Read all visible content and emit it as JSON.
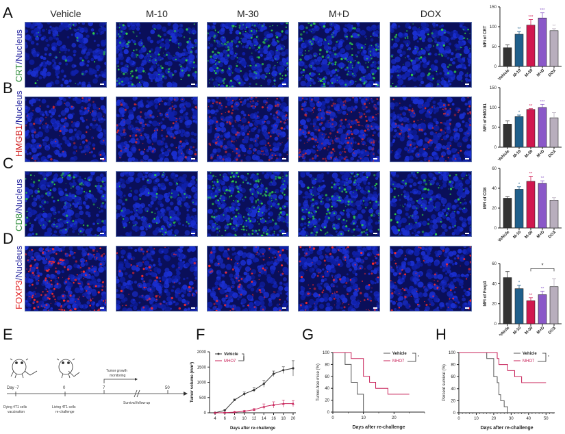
{
  "panels": {
    "A": {
      "letter": "A",
      "stain": "CRT",
      "nucleus": "/Nucleus",
      "stain_color": "#2e8b3a"
    },
    "B": {
      "letter": "B",
      "stain": "HMGB1",
      "nucleus": "/Nucleus",
      "stain_color": "#d02020"
    },
    "C": {
      "letter": "C",
      "stain": "CD8",
      "nucleus": "/Nucleus",
      "stain_color": "#2e8b3a"
    },
    "D": {
      "letter": "D",
      "stain": "FOXP3",
      "nucleus": "/Nucleus",
      "stain_color": "#e02020"
    },
    "E": {
      "letter": "E"
    },
    "F": {
      "letter": "F"
    },
    "G": {
      "letter": "G"
    },
    "H": {
      "letter": "H"
    }
  },
  "columns": [
    "Vehicle",
    "M-10",
    "M-30",
    "M+D",
    "DOX"
  ],
  "colors": {
    "vehicle": "#333333",
    "m10": "#1f5f8b",
    "m30": "#d0174f",
    "md": "#8a58c8",
    "dox": "#b8aebd",
    "nucleus_blue": "#1a2fd0",
    "mho7": "#c8235a"
  },
  "timeline": {
    "day_minus7": "Day -7",
    "day0": "0",
    "day7": "7",
    "day50": "50",
    "vaccination_line1": "Dying 4T1 cells",
    "vaccination_line2": "vaccination",
    "rechallenge_line1": "Living 4T1 cells",
    "rechallenge_line2": "re-challenge",
    "monitoring_line1": "Tumor growth",
    "monitoring_line2": "monitoring",
    "survival": "Survival follow-up"
  },
  "chart_data": [
    {
      "id": "A",
      "type": "bar",
      "categories": [
        "Vehicle",
        "M-10",
        "M-30",
        "M+D",
        "DOX"
      ],
      "values": [
        47,
        81,
        104,
        122,
        90
      ],
      "errors": [
        7,
        7,
        14,
        13,
        5
      ],
      "significance": [
        "",
        "**",
        "***",
        "***",
        "**"
      ],
      "ylabel": "MFI of CRT",
      "ylim": [
        0,
        150
      ],
      "yticks": [
        0,
        50,
        100,
        150
      ]
    },
    {
      "id": "B",
      "type": "bar",
      "categories": [
        "Vehicle",
        "M-10",
        "M-30",
        "M+D",
        "DOX"
      ],
      "values": [
        58,
        77,
        95,
        100,
        74
      ],
      "errors": [
        8,
        4,
        2,
        8,
        13
      ],
      "significance": [
        "",
        "*",
        "**",
        "***",
        ""
      ],
      "ylabel": "MFI of HMGB1",
      "ylim": [
        0,
        150
      ],
      "yticks": [
        0,
        50,
        100,
        150
      ]
    },
    {
      "id": "C",
      "type": "bar",
      "categories": [
        "Vehicle",
        "M-10",
        "M-30",
        "M+D",
        "DOX"
      ],
      "values": [
        30,
        39,
        47,
        45,
        28
      ],
      "errors": [
        1.5,
        2.5,
        5,
        2.5,
        2.5
      ],
      "significance": [
        "",
        "*",
        "**",
        "**",
        ""
      ],
      "ylabel": "MFI of CD8",
      "ylim": [
        0,
        60
      ],
      "yticks": [
        0,
        20,
        40,
        60
      ]
    },
    {
      "id": "D",
      "type": "bar",
      "categories": [
        "Vehicle",
        "M-10",
        "M-30",
        "M+D",
        "DOX"
      ],
      "values": [
        46,
        35,
        23,
        29,
        37
      ],
      "errors": [
        6,
        3.5,
        3,
        3.5,
        8
      ],
      "significance": [
        "",
        "*",
        "**",
        "**",
        ""
      ],
      "bracket": {
        "from": "M-30",
        "to": "DOX",
        "label": "*"
      },
      "ylabel": "MFI of Foxp3",
      "ylim": [
        0,
        60
      ],
      "yticks": [
        0,
        20,
        40,
        60
      ]
    },
    {
      "id": "F",
      "type": "line",
      "x": [
        4,
        6,
        8,
        10,
        12,
        14,
        16,
        18,
        20
      ],
      "series": [
        {
          "name": "Vehicle",
          "values": [
            0,
            80,
            420,
            620,
            750,
            950,
            1280,
            1400,
            1460
          ],
          "errors": [
            10,
            20,
            30,
            60,
            70,
            110,
            90,
            110,
            250
          ]
        },
        {
          "name": "MHO7",
          "values": [
            0,
            5,
            20,
            50,
            100,
            200,
            260,
            300,
            300
          ],
          "errors": [
            5,
            10,
            20,
            30,
            40,
            90,
            100,
            120,
            100
          ]
        }
      ],
      "significance": "***",
      "xlabel": "Days after re-challenge",
      "ylabel": "Tumor volume (mm³)",
      "ylim": [
        0,
        2000
      ],
      "yticks": [
        0,
        500,
        1000,
        1500,
        2000
      ],
      "xticks": [
        4,
        6,
        8,
        10,
        12,
        14,
        16,
        18,
        20
      ]
    },
    {
      "id": "G",
      "type": "line",
      "step": true,
      "series": [
        {
          "name": "Vehicle",
          "points": [
            [
              0,
              100
            ],
            [
              4,
              100
            ],
            [
              4,
              80
            ],
            [
              6,
              80
            ],
            [
              6,
              50
            ],
            [
              8,
              50
            ],
            [
              8,
              30
            ],
            [
              10,
              30
            ],
            [
              10,
              0
            ]
          ]
        },
        {
          "name": "MHO7",
          "points": [
            [
              0,
              100
            ],
            [
              6,
              100
            ],
            [
              6,
              90
            ],
            [
              10,
              90
            ],
            [
              10,
              60
            ],
            [
              12,
              60
            ],
            [
              12,
              50
            ],
            [
              14,
              50
            ],
            [
              14,
              40
            ],
            [
              18,
              40
            ],
            [
              18,
              30
            ],
            [
              25,
              30
            ]
          ]
        }
      ],
      "significance": "*",
      "xlabel": "Days after re-challenge",
      "ylabel": "Tumor-free mice (%)",
      "xlim": [
        0,
        30
      ],
      "ylim": [
        0,
        100
      ],
      "xticks": [
        0,
        10,
        20
      ],
      "yticks": [
        0,
        20,
        40,
        60,
        80,
        100
      ]
    },
    {
      "id": "H",
      "type": "line",
      "step": true,
      "series": [
        {
          "name": "Vehicle",
          "points": [
            [
              0,
              100
            ],
            [
              16,
              100
            ],
            [
              16,
              90
            ],
            [
              20,
              90
            ],
            [
              20,
              60
            ],
            [
              22,
              60
            ],
            [
              22,
              50
            ],
            [
              23,
              50
            ],
            [
              23,
              30
            ],
            [
              24,
              30
            ],
            [
              24,
              20
            ],
            [
              26,
              20
            ],
            [
              26,
              10
            ],
            [
              28,
              10
            ],
            [
              28,
              0
            ]
          ]
        },
        {
          "name": "MHO7",
          "points": [
            [
              0,
              100
            ],
            [
              22,
              100
            ],
            [
              22,
              90
            ],
            [
              23,
              90
            ],
            [
              23,
              80
            ],
            [
              28,
              80
            ],
            [
              28,
              70
            ],
            [
              32,
              70
            ],
            [
              32,
              60
            ],
            [
              36,
              60
            ],
            [
              36,
              50
            ],
            [
              50,
              50
            ]
          ]
        }
      ],
      "significance": "*",
      "xlabel": "Days after re-challenge",
      "ylabel": "Percent survival (%)",
      "xlim": [
        0,
        55
      ],
      "ylim": [
        0,
        100
      ],
      "xticks": [
        0,
        10,
        20,
        30,
        40,
        50
      ],
      "yticks": [
        0,
        20,
        40,
        60,
        80,
        100
      ]
    }
  ]
}
